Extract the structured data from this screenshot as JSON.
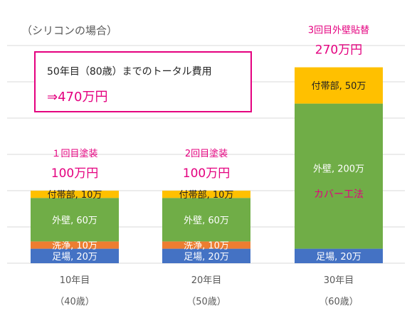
{
  "subtitle": "（シリコンの場合）",
  "callout": {
    "label": "50年目（80歳）までのトータル費用",
    "total": "⇒470万円"
  },
  "colors": {
    "ashiba": "#4472c4",
    "senjo": "#ed7d31",
    "gaiheki": "#70ad47",
    "futaibu": "#ffc000",
    "accent": "#e4007f",
    "grid": "#d9d9d9"
  },
  "chart_data": {
    "type": "bar",
    "stacked": true,
    "categories": [
      {
        "label": "10年目",
        "sublabel": "（40歳）"
      },
      {
        "label": "20年目",
        "sublabel": "（50歳）"
      },
      {
        "label": "30年目",
        "sublabel": "（60歳）"
      }
    ],
    "ylim": [
      0,
      300
    ],
    "grid": true,
    "bars": [
      {
        "work": "１回目塗装",
        "total_label": "100万円",
        "total": 100,
        "segments": [
          {
            "label": "足場, 20万",
            "value": 20,
            "color": "#4472c4"
          },
          {
            "label": "洗浄, 10万",
            "value": 10,
            "color": "#ed7d31"
          },
          {
            "label": "外壁, 60万",
            "value": 60,
            "color": "#70ad47"
          },
          {
            "label": "付帯部, 10万",
            "value": 10,
            "color": "#ffc000"
          }
        ]
      },
      {
        "work": "2回目塗装",
        "total_label": "100万円",
        "total": 100,
        "segments": [
          {
            "label": "足場, 20万",
            "value": 20,
            "color": "#4472c4"
          },
          {
            "label": "洗浄, 10万",
            "value": 10,
            "color": "#ed7d31"
          },
          {
            "label": "外壁, 60万",
            "value": 60,
            "color": "#70ad47"
          },
          {
            "label": "付帯部, 10万",
            "value": 10,
            "color": "#ffc000"
          }
        ]
      },
      {
        "work": "3回目外壁貼替",
        "total_label": "270万円",
        "total": 270,
        "segments": [
          {
            "label": "足場, 20万",
            "value": 20,
            "color": "#4472c4"
          },
          {
            "label": "外壁, 200万",
            "value": 200,
            "color": "#70ad47",
            "note": "カバー工法"
          },
          {
            "label": "付帯部, 50万",
            "value": 50,
            "color": "#ffc000"
          }
        ]
      }
    ]
  }
}
